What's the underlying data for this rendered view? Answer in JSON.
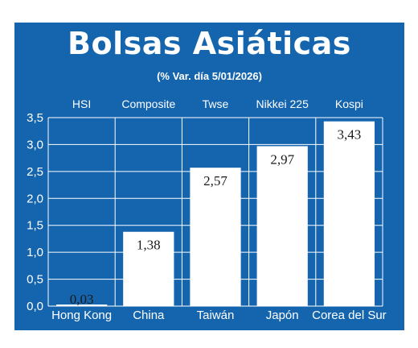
{
  "chart_data": {
    "type": "bar",
    "title": "Bolsas Asiáticas",
    "subtitle": "(% Var. día  5/01/2026)",
    "index_names": [
      "HSI",
      "Composite",
      "Twse",
      "Nikkei 225",
      "Kospi"
    ],
    "categories": [
      "Hong Kong",
      "China",
      "Taiwán",
      "Japón",
      "Corea del Sur"
    ],
    "values": [
      0.03,
      1.38,
      2.57,
      2.97,
      3.43
    ],
    "value_labels": [
      "0,03",
      "1,38",
      "2,57",
      "2,97",
      "3,43"
    ],
    "y_ticks": [
      "0,0",
      "0,5",
      "1,0",
      "1,5",
      "2,0",
      "2,5",
      "3,0",
      "3,5"
    ],
    "ylim": [
      0,
      3.5
    ],
    "grid": true,
    "colors": {
      "background": "#1565ae",
      "bar": "#ffffff",
      "grid": "#ffffff",
      "text": "#ffffff"
    }
  }
}
